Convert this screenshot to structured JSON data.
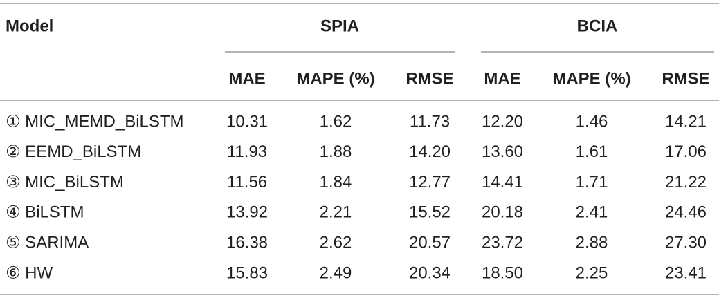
{
  "table": {
    "header": [
      "Model",
      "SPIA",
      "BCIA"
    ],
    "subheader": [
      "MAE",
      "MAPE (%)",
      "RMSE",
      "MAE",
      "MAPE (%)",
      "RMSE"
    ],
    "rows": [
      [
        "① MIC_MEMD_BiLSTM",
        "10.31",
        "1.62",
        "11.73",
        "12.20",
        "1.46",
        "14.21"
      ],
      [
        "② EEMD_BiLSTM",
        "11.93",
        "1.88",
        "14.20",
        "13.60",
        "1.61",
        "17.06"
      ],
      [
        "③ MIC_BiLSTM",
        "11.56",
        "1.84",
        "12.77",
        "14.41",
        "1.71",
        "21.22"
      ],
      [
        "④ BiLSTM",
        "13.92",
        "2.21",
        "15.52",
        "20.18",
        "2.41",
        "24.46"
      ],
      [
        "⑤ SARIMA",
        "16.38",
        "2.62",
        "20.57",
        "23.72",
        "2.88",
        "27.30"
      ],
      [
        "⑥ HW",
        "15.83",
        "2.49",
        "20.34",
        "18.50",
        "2.25",
        "23.41"
      ]
    ]
  }
}
